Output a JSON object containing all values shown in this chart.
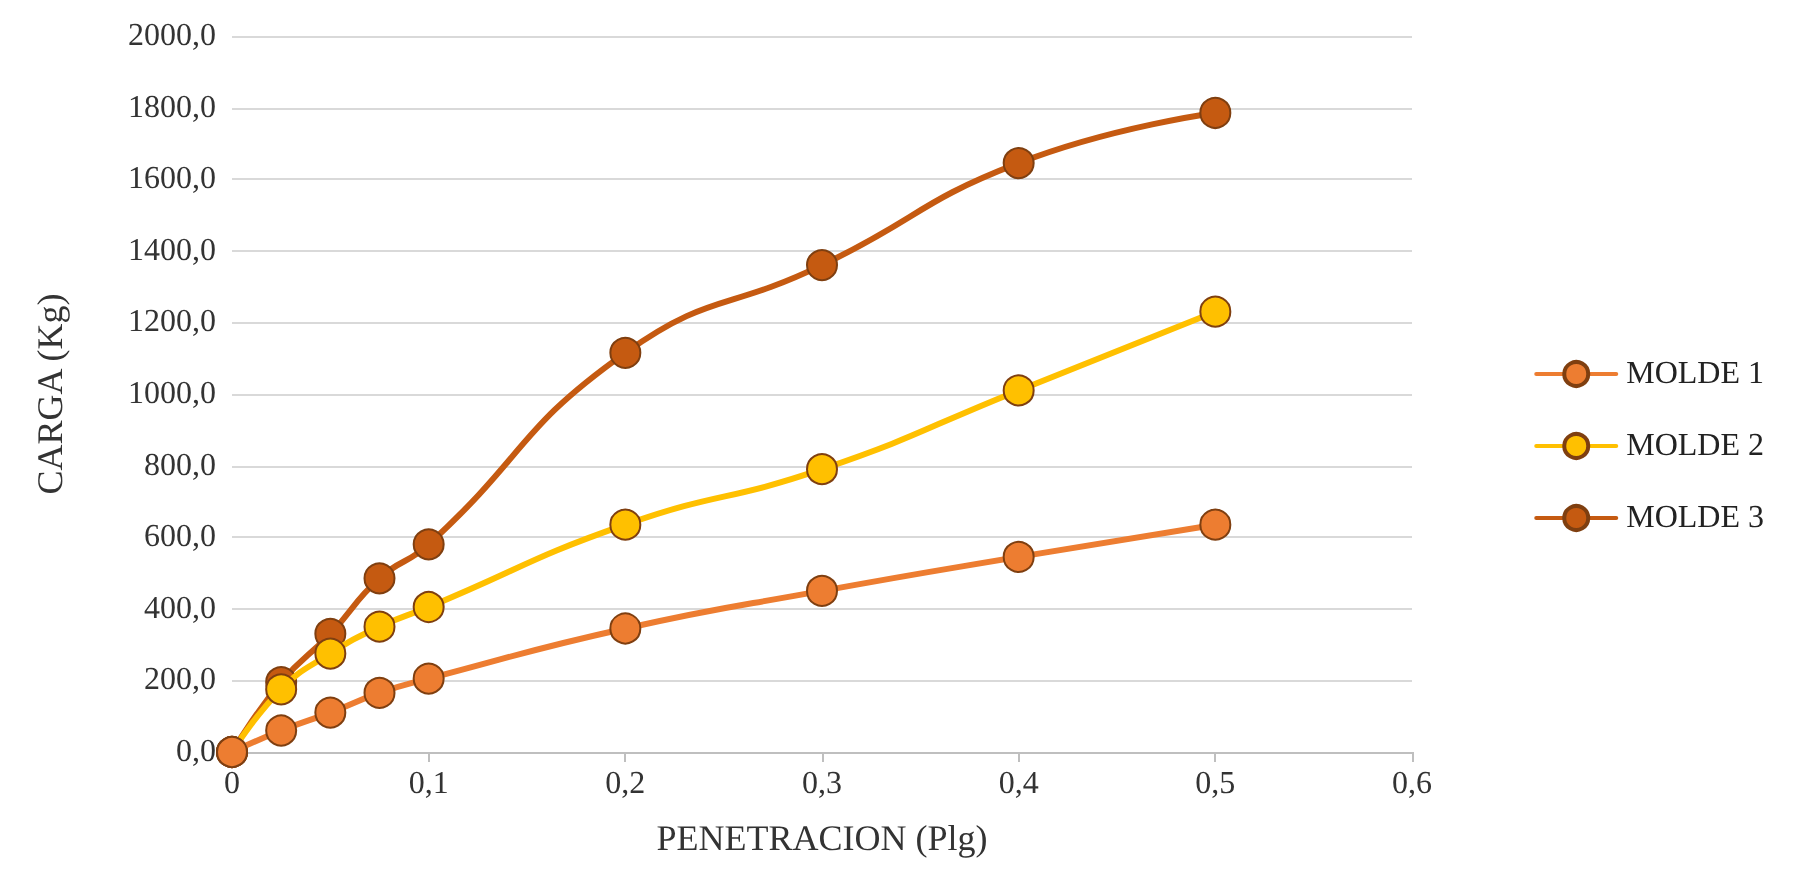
{
  "chart_data": {
    "type": "line",
    "xlabel": "PENETRACION (Plg)",
    "ylabel": "CARGA (Kg)",
    "x": [
      0,
      0.025,
      0.05,
      0.075,
      0.1,
      0.2,
      0.3,
      0.4,
      0.5
    ],
    "series": [
      {
        "name": "MOLDE 1",
        "color": "#ed7d31",
        "values": [
          0,
          60,
          110,
          165,
          205,
          345,
          450,
          545,
          635
        ]
      },
      {
        "name": "MOLDE 2",
        "color": "#ffc000",
        "values": [
          0,
          175,
          275,
          350,
          405,
          635,
          790,
          1010,
          1230
        ]
      },
      {
        "name": "MOLDE 3",
        "color": "#c55a11",
        "values": [
          0,
          195,
          330,
          485,
          580,
          1115,
          1360,
          1645,
          1785
        ]
      }
    ],
    "xlim": [
      0,
      0.6
    ],
    "xticks": [
      {
        "value": 0,
        "label": "0"
      },
      {
        "value": 0.1,
        "label": "0,1"
      },
      {
        "value": 0.2,
        "label": "0,2"
      },
      {
        "value": 0.3,
        "label": "0,3"
      },
      {
        "value": 0.4,
        "label": "0,4"
      },
      {
        "value": 0.5,
        "label": "0,5"
      },
      {
        "value": 0.6,
        "label": "0,6"
      }
    ],
    "ylim": [
      0,
      2000
    ],
    "yticks": [
      {
        "value": 0,
        "label": "0,0"
      },
      {
        "value": 200,
        "label": "200,0"
      },
      {
        "value": 400,
        "label": "400,0"
      },
      {
        "value": 600,
        "label": "600,0"
      },
      {
        "value": 800,
        "label": "800,0"
      },
      {
        "value": 1000,
        "label": "1000,0"
      },
      {
        "value": 1200,
        "label": "1200,0"
      },
      {
        "value": 1400,
        "label": "1400,0"
      },
      {
        "value": 1600,
        "label": "1600,0"
      },
      {
        "value": 1800,
        "label": "1800,0"
      },
      {
        "value": 2000,
        "label": "2000,0"
      }
    ],
    "grid": "y",
    "legend": "right",
    "marker": "circle",
    "line_style": "solid"
  }
}
